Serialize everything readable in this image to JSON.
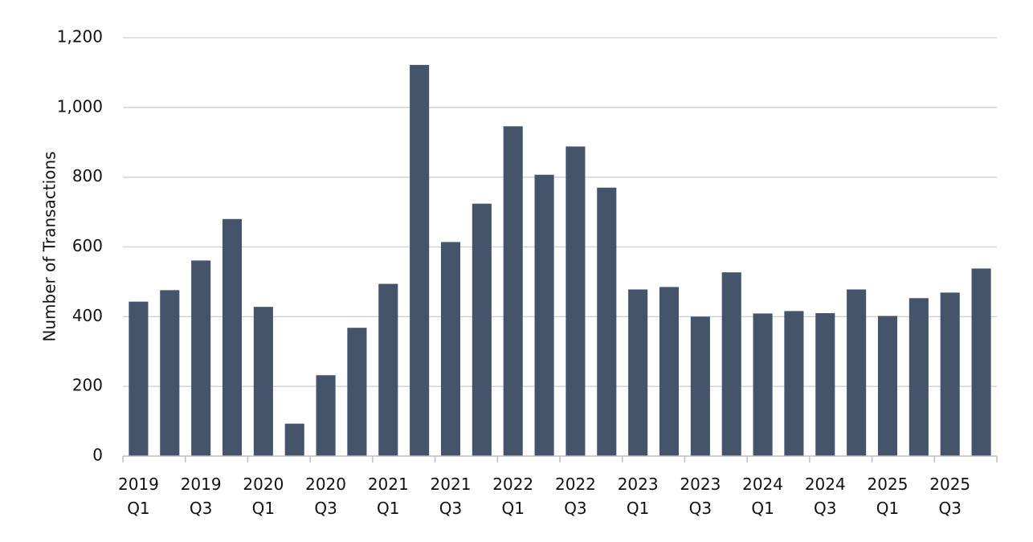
{
  "chart_data": {
    "type": "bar",
    "ylabel": "Number of Transactions",
    "ylim": [
      0,
      1200
    ],
    "yticks": [
      0,
      200,
      400,
      600,
      800,
      1000,
      1200
    ],
    "ytick_labels": [
      "0",
      "200",
      "400",
      "600",
      "800",
      "1,000",
      "1,200"
    ],
    "grid": true,
    "bar_color": "#44546a",
    "categories": [
      "2019 Q1",
      "2019 Q2",
      "2019 Q3",
      "2019 Q4",
      "2020 Q1",
      "2020 Q2",
      "2020 Q3",
      "2020 Q4",
      "2021 Q1",
      "2021 Q2",
      "2021 Q3",
      "2021 Q4",
      "2022 Q1",
      "2022 Q2",
      "2022 Q3",
      "2022 Q4",
      "2023 Q1",
      "2023 Q2",
      "2023 Q3",
      "2023 Q4",
      "2024 Q1",
      "2024 Q2",
      "2024 Q3",
      "2024 Q4",
      "2025 Q1",
      "2025 Q2",
      "2025 Q3",
      "2025 Q4"
    ],
    "values": [
      443,
      476,
      561,
      680,
      428,
      93,
      232,
      368,
      494,
      1122,
      614,
      724,
      946,
      807,
      888,
      770,
      478,
      485,
      400,
      527,
      409,
      416,
      410,
      478,
      402,
      453,
      469,
      538
    ],
    "x_tick_labels": [
      {
        "year": "2019",
        "quarter": "Q1"
      },
      {
        "year": "2019",
        "quarter": "Q3"
      },
      {
        "year": "2020",
        "quarter": "Q1"
      },
      {
        "year": "2020",
        "quarter": "Q3"
      },
      {
        "year": "2021",
        "quarter": "Q1"
      },
      {
        "year": "2021",
        "quarter": "Q3"
      },
      {
        "year": "2022",
        "quarter": "Q1"
      },
      {
        "year": "2022",
        "quarter": "Q3"
      },
      {
        "year": "2023",
        "quarter": "Q1"
      },
      {
        "year": "2023",
        "quarter": "Q3"
      },
      {
        "year": "2024",
        "quarter": "Q1"
      },
      {
        "year": "2024",
        "quarter": "Q3"
      },
      {
        "year": "2025",
        "quarter": "Q1"
      },
      {
        "year": "2025",
        "quarter": "Q3"
      }
    ]
  }
}
